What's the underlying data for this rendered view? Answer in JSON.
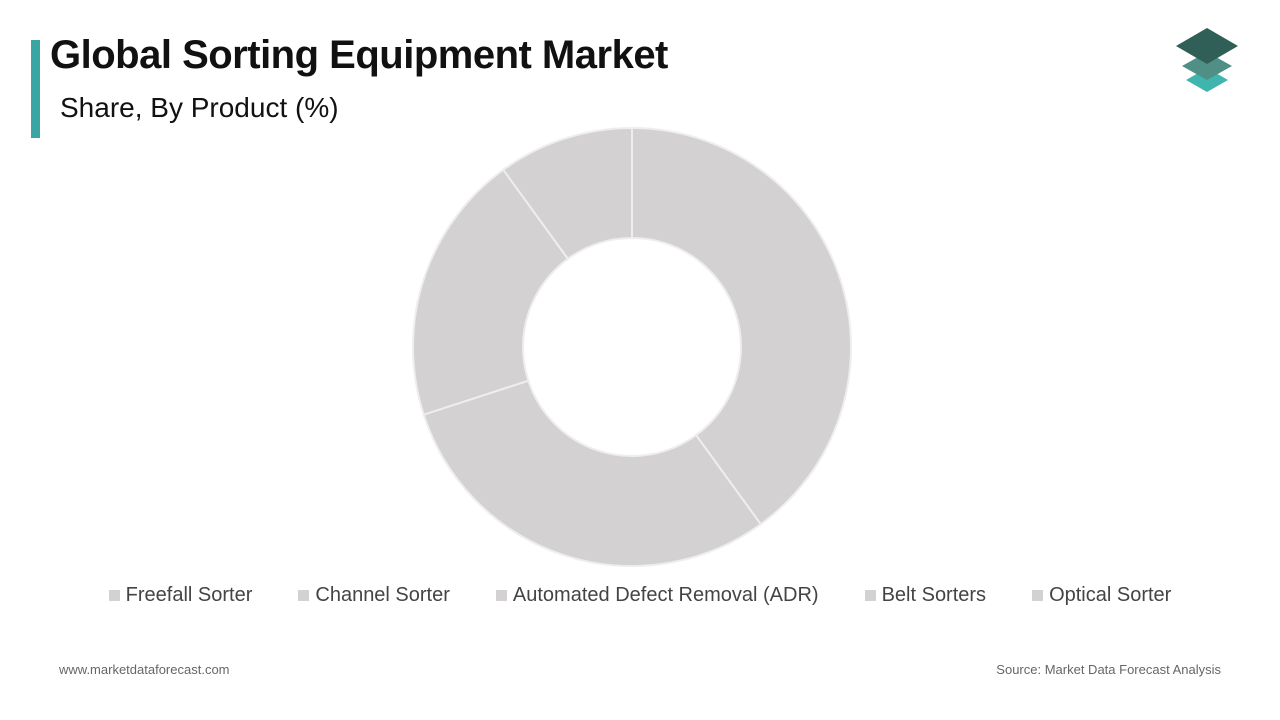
{
  "header": {
    "title": "Global Sorting Equipment Market",
    "subtitle": "Share, By Product (%)"
  },
  "colors": {
    "accent": "#3aa6a3",
    "slice": "#d3d1d2",
    "slice_border": "#eeeeee",
    "logo_dark": "#2f5f57",
    "logo_mid": "#4f8f86",
    "logo_light": "#3fb5ae"
  },
  "logo": {
    "icon": "stacked-layers-icon"
  },
  "chart_data": {
    "type": "pie",
    "style": "donut",
    "title": "Share, By Product (%)",
    "categories": [
      "Freefall Sorter",
      "Channel Sorter",
      "Automated Defect Removal (ADR)",
      "Belt Sorters",
      "Optical Sorter"
    ],
    "values": [
      40,
      30,
      20,
      10,
      0
    ],
    "legend_position": "bottom"
  },
  "footer": {
    "website": "www.marketdataforecast.com",
    "source": "Source: Market Data Forecast Analysis"
  }
}
